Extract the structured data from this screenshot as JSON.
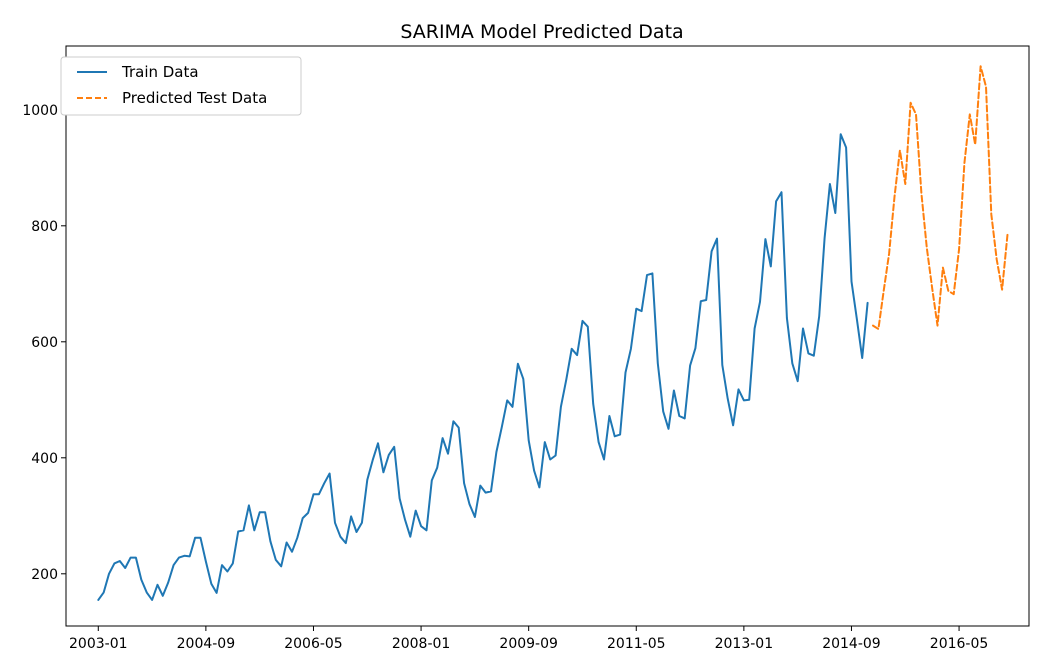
{
  "chart_data": {
    "type": "line",
    "title": "SARIMA Model Predicted Data",
    "xlabel": "",
    "ylabel": "",
    "x_tick_labels": [
      "2003-01",
      "2004-09",
      "2006-05",
      "2008-01",
      "2009-09",
      "2011-05",
      "2013-01",
      "2014-09",
      "2016-05"
    ],
    "y_ticks": [
      200,
      400,
      600,
      800,
      1000
    ],
    "ylim": [
      110,
      1110
    ],
    "xlim": [
      "2002-07",
      "2017-06"
    ],
    "grid": false,
    "legend": {
      "position": "top-left",
      "entries": [
        "Train Data",
        "Predicted Test Data"
      ]
    },
    "series": [
      {
        "name": "Train Data",
        "color": "#1f77b4",
        "dash": "solid",
        "start": "2003-01",
        "values": [
          155,
          168,
          200,
          218,
          222,
          210,
          228,
          228,
          190,
          168,
          155,
          181,
          162,
          185,
          215,
          228,
          231,
          230,
          262,
          262,
          221,
          183,
          167,
          215,
          204,
          218,
          273,
          275,
          318,
          275,
          306,
          306,
          256,
          224,
          213,
          254,
          238,
          262,
          296,
          305,
          337,
          337,
          356,
          373,
          288,
          264,
          253,
          299,
          272,
          288,
          362,
          396,
          425,
          375,
          405,
          419,
          330,
          294,
          264,
          309,
          282,
          275,
          361,
          383,
          434,
          407,
          463,
          452,
          356,
          320,
          298,
          352,
          340,
          342,
          410,
          453,
          499,
          488,
          562,
          536,
          430,
          378,
          349,
          427,
          397,
          404,
          488,
          535,
          588,
          577,
          636,
          626,
          493,
          427,
          397,
          472,
          437,
          440,
          547,
          588,
          657,
          653,
          715,
          718,
          563,
          480,
          450,
          516,
          472,
          468,
          559,
          589,
          670,
          672,
          756,
          778,
          560,
          502,
          456,
          518,
          499,
          500,
          623,
          669,
          777,
          730,
          842,
          858,
          641,
          563,
          532,
          623,
          580,
          576,
          644,
          779,
          872,
          822,
          958,
          935,
          704,
          640,
          572,
          667
        ]
      },
      {
        "name": "Predicted Test Data",
        "color": "#ff7f0e",
        "dash": "dashed",
        "start": "2015-01",
        "values": [
          628,
          622,
          688,
          752,
          850,
          930,
          872,
          1012,
          992,
          856,
          762,
          692,
          628,
          728,
          688,
          682,
          760,
          908,
          992,
          940,
          1075,
          1040,
          820,
          742,
          690,
          785
        ]
      }
    ]
  }
}
